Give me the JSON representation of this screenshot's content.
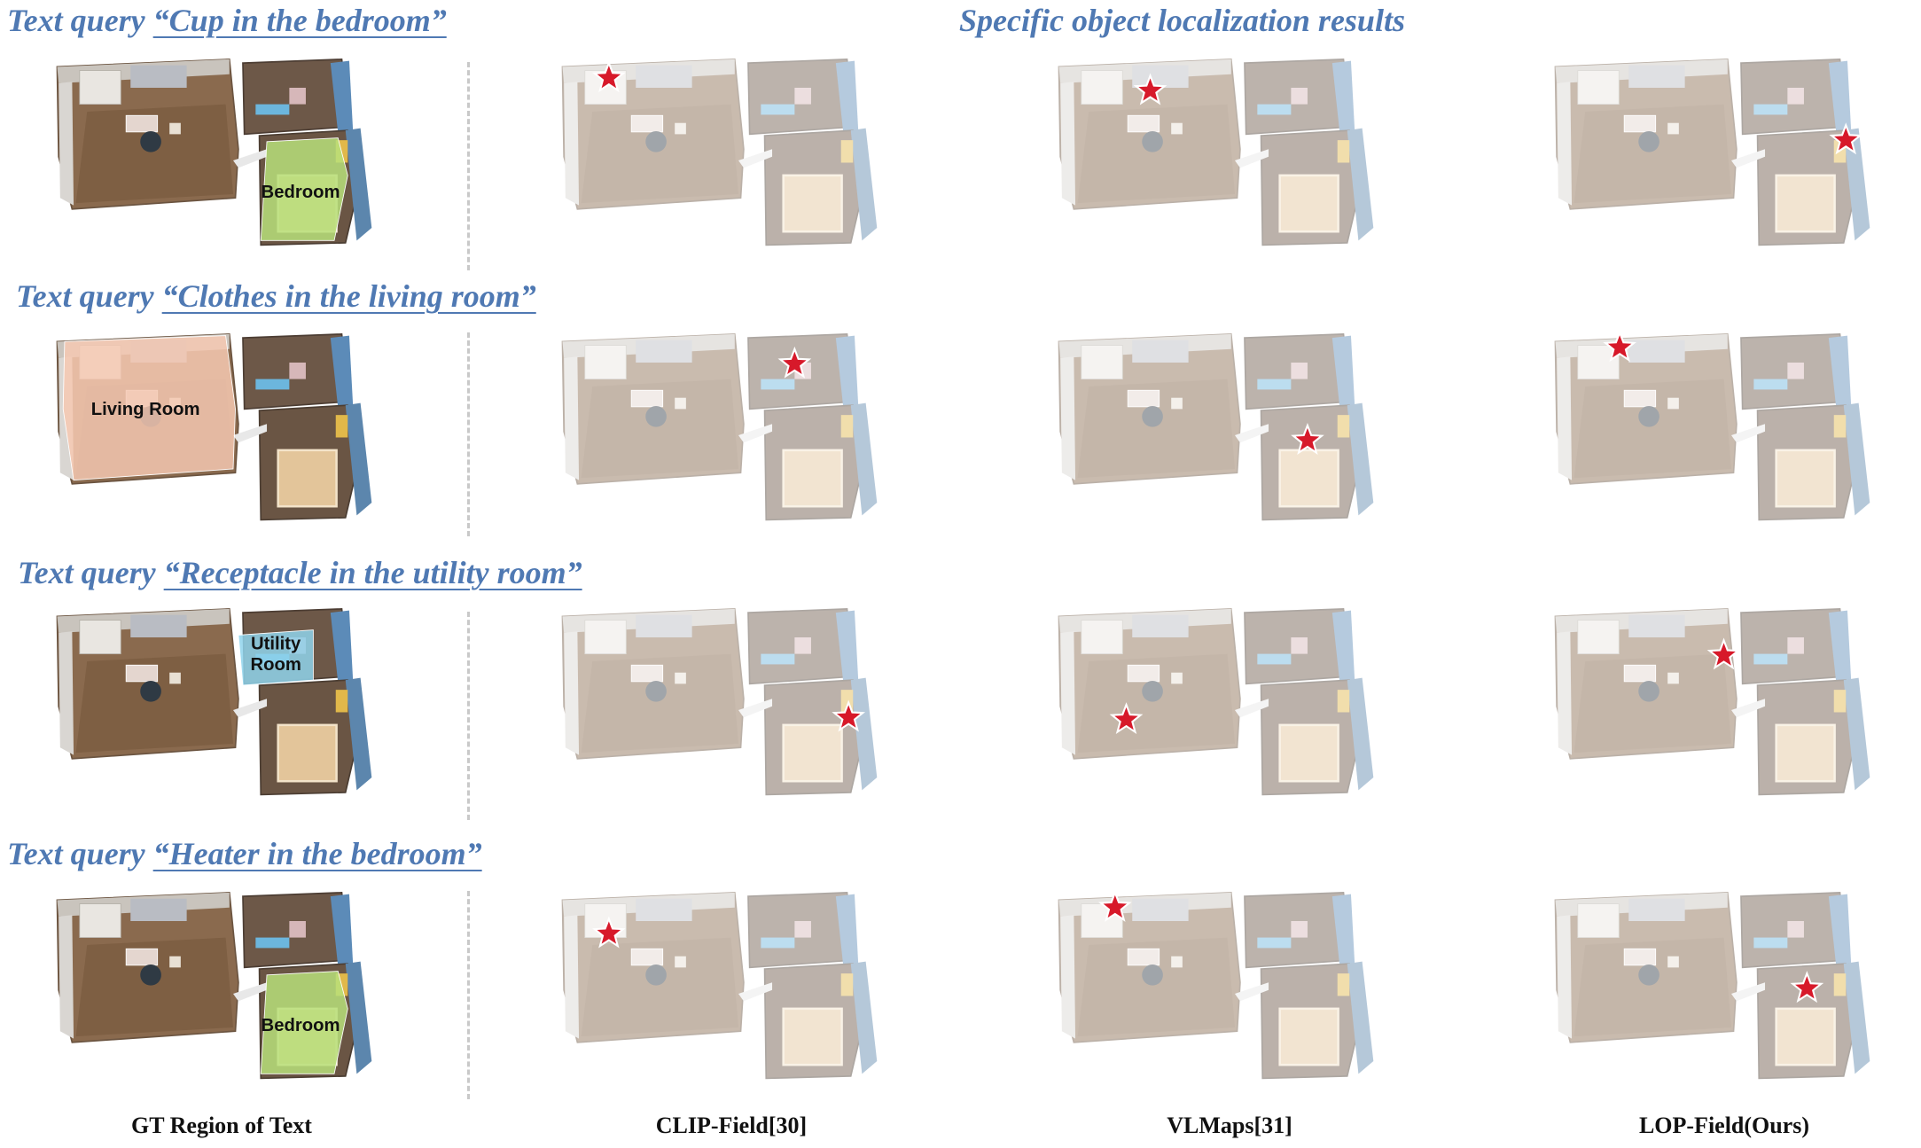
{
  "heading": "Specific object localization results",
  "rows": [
    {
      "prefix": "Text query ",
      "query": "“Cup in the bedroom”",
      "region": "Bedroom",
      "region_lines": [
        "Bedroom"
      ]
    },
    {
      "prefix": "Text query ",
      "query": "“Clothes in the living room”",
      "region": "Living Room",
      "region_lines": [
        "Living Room"
      ]
    },
    {
      "prefix": "Text query ",
      "query": "“Receptacle in the utility room”",
      "region": "Utility Room",
      "region_lines": [
        "Utility",
        "Room"
      ]
    },
    {
      "prefix": "Text query ",
      "query": "“Heater in the bedroom”",
      "region": "Bedroom",
      "region_lines": [
        "Bedroom"
      ]
    }
  ],
  "columns": [
    "GT Region of Text",
    "CLIP-Field[30]",
    "VLMaps[31]",
    "LOP-Field(Ours)"
  ],
  "marker": {
    "icon": "star-icon",
    "color": "#d7192a"
  },
  "region_colors": {
    "bedroom": "#b7e07a",
    "living_room": "#f6c9b3",
    "utility_room": "#8fd3ec"
  }
}
